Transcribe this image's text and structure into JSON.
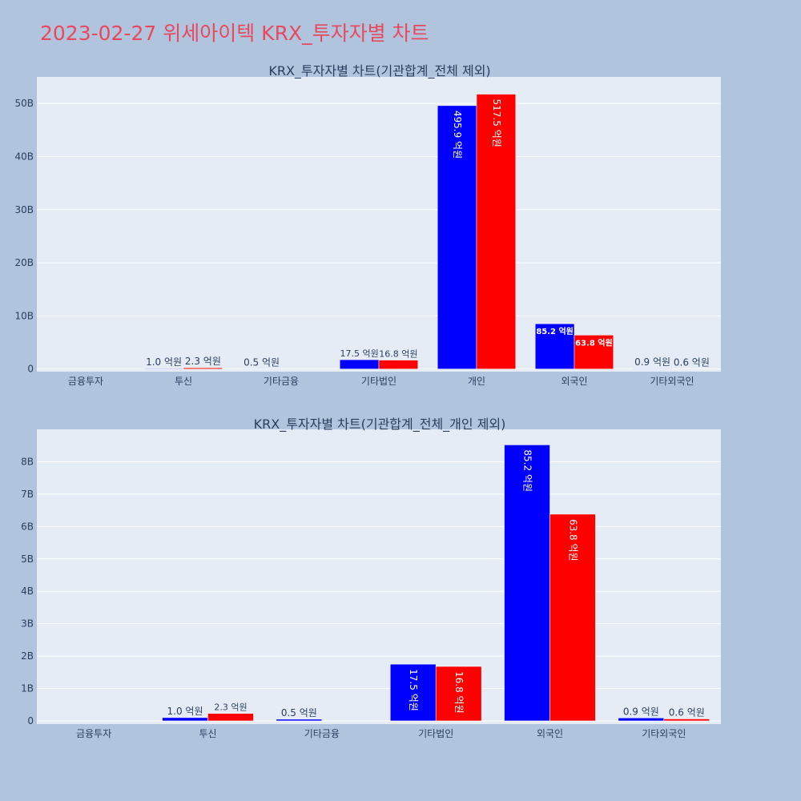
{
  "page": {
    "title": "2023-02-27 위세아이텍 KRX_투자자별 차트"
  },
  "colors": {
    "buy": "#0000ff",
    "sell": "#ff0000",
    "plot_bg": "#e5ecf6",
    "grid": "#ffffff",
    "text": "#2a3f5f"
  },
  "chart_data": [
    {
      "type": "bar",
      "title": "KRX_투자자별 차트(기관합계_전체 제외)",
      "categories": [
        "금융투자",
        "투신",
        "기타금융",
        "기타법인",
        "개인",
        "외국인",
        "기타외국인"
      ],
      "series": [
        {
          "color": "#0000ff",
          "values": [
            0,
            100000000,
            50000000,
            1750000000,
            49590000000,
            8520000000,
            90000000
          ],
          "labels": [
            "",
            "1.0 억원",
            "0.5 억원",
            "17.5 억원",
            "495.9 억원",
            "85.2 억원",
            "0.9 억원"
          ]
        },
        {
          "color": "#ff0000",
          "values": [
            0,
            230000000,
            0,
            1680000000,
            51750000000,
            6380000000,
            60000000
          ],
          "labels": [
            "",
            "2.3 억원",
            "",
            "16.8 억원",
            "517.5 억원",
            "63.8 억원",
            "0.6 억원"
          ]
        }
      ],
      "ylim": [
        -500000000,
        55000000000
      ],
      "yticks": [
        0,
        10000000000,
        20000000000,
        30000000000,
        40000000000,
        50000000000
      ],
      "ytick_labels": [
        "0",
        "10B",
        "20B",
        "30B",
        "40B",
        "50B"
      ],
      "grid": true,
      "legend": "none"
    },
    {
      "type": "bar",
      "title": "KRX_투자자별 차트(기관합계_전체_개인 제외)",
      "categories": [
        "금융투자",
        "투신",
        "기타금융",
        "기타법인",
        "외국인",
        "기타외국인"
      ],
      "series": [
        {
          "color": "#0000ff",
          "values": [
            0,
            100000000,
            50000000,
            1750000000,
            8520000000,
            90000000
          ],
          "labels": [
            "",
            "1.0 억원",
            "0.5 억원",
            "17.5 억원",
            "85.2 억원",
            "0.9 억원"
          ]
        },
        {
          "color": "#ff0000",
          "values": [
            0,
            230000000,
            0,
            1680000000,
            6380000000,
            60000000
          ],
          "labels": [
            "",
            "2.3 억원",
            "",
            "16.8 억원",
            "63.8 억원",
            "0.6 억원"
          ]
        }
      ],
      "ylim": [
        -100000000,
        9000000000
      ],
      "yticks": [
        0,
        1000000000,
        2000000000,
        3000000000,
        4000000000,
        5000000000,
        6000000000,
        7000000000,
        8000000000
      ],
      "ytick_labels": [
        "0",
        "1B",
        "2B",
        "3B",
        "4B",
        "5B",
        "6B",
        "7B",
        "8B"
      ],
      "grid": true,
      "legend": "none"
    }
  ]
}
